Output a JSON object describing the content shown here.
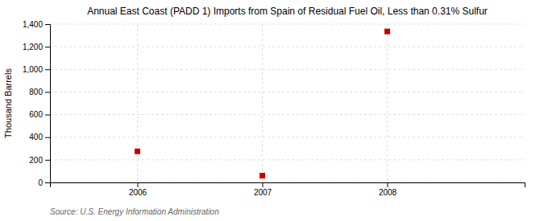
{
  "chart_data": {
    "type": "scatter",
    "title": "Annual East Coast (PADD 1) Imports from Spain of Residual Fuel Oil, Less than 0.31% Sulfur",
    "ylabel": "Thousand Barrels",
    "source": "Source: U.S. Energy Information Administration",
    "x": [
      2006,
      2007,
      2008
    ],
    "values": [
      275,
      60,
      1335
    ],
    "color": "#cc0000",
    "marker": "square",
    "xlim": [
      2005.3,
      2009.1
    ],
    "xticks": [
      2006,
      2007,
      2008
    ],
    "ylim": [
      0,
      1400
    ],
    "yticks": [
      0,
      200,
      400,
      600,
      800,
      {
        "value": 1000,
        "label": "1,000"
      },
      {
        "value": 1200,
        "label": "1,200"
      },
      {
        "value": 1400,
        "label": "1,400"
      }
    ],
    "grid": true
  }
}
